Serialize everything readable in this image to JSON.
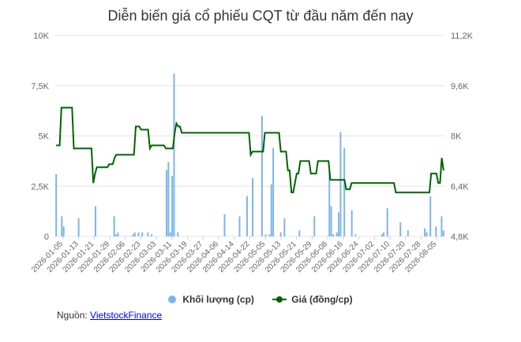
{
  "title": "Diễn biến giá cổ phiếu CQT từ đầu năm đến nay",
  "source": {
    "label": "Nguồn:",
    "link_text": "VietstockFinance"
  },
  "legend": {
    "volume": "Khối lượng (cp)",
    "price": "Giá (đồng/cp)"
  },
  "colors": {
    "volume": "#7cb5ec",
    "price": "#006400",
    "grid": "#e6e6e6"
  },
  "chart_data": {
    "type": "bar+line",
    "title": "Diễn biến giá cổ phiếu CQT từ đầu năm đến nay",
    "x_tick_labels": [
      "2026-01-05",
      "2026-01-13",
      "2026-01-21",
      "2026-01-29",
      "2026-02-06",
      "2026-02-23",
      "2026-03-03",
      "2026-03-11",
      "2026-03-19",
      "2026-03-27",
      "2026-04-06",
      "2026-04-14",
      "2026-04-22",
      "2026-05-05",
      "2026-05-13",
      "2026-05-21",
      "2026-05-29",
      "2026-06-08",
      "2026-06-16",
      "2026-06-24",
      "2026-07-02",
      "2026-07-10",
      "2026-07-20",
      "2026-07-28",
      "2026-08-05"
    ],
    "y_left": {
      "ticks": [
        "0",
        "2,5K",
        "5K",
        "7,5K",
        "10K"
      ],
      "range": [
        0,
        10000
      ]
    },
    "y_right": {
      "ticks": [
        "4,8K",
        "6,4K",
        "8K",
        "9,6K",
        "11,2K"
      ],
      "range": [
        4800,
        11200
      ]
    },
    "legend_position": "bottom",
    "series": [
      {
        "name": "Khối lượng (cp)",
        "type": "column",
        "axis": "left",
        "values": [
          3100,
          0,
          0,
          1000,
          500,
          0,
          0,
          0,
          0,
          0,
          0,
          0,
          900,
          0,
          0,
          0,
          0,
          0,
          0,
          0,
          0,
          1500,
          0,
          0,
          0,
          0,
          0,
          0,
          0,
          0,
          0,
          1000,
          100,
          200,
          0,
          0,
          0,
          0,
          0,
          0,
          0,
          100,
          200,
          0,
          200,
          0,
          200,
          0,
          0,
          200,
          0,
          100,
          0,
          0,
          0,
          0,
          0,
          0,
          0,
          3300,
          3700,
          200,
          3000,
          8100,
          0,
          200,
          0,
          0,
          0,
          0,
          0,
          0,
          0,
          0,
          0,
          0,
          0,
          0,
          0,
          0,
          0,
          0,
          0,
          0,
          0,
          0,
          0,
          0,
          0,
          0,
          1100,
          0,
          0,
          0,
          0,
          0,
          0,
          0,
          1000,
          0,
          0,
          0,
          2000,
          0,
          0,
          2900,
          0,
          0,
          0,
          0,
          6000,
          0,
          100,
          0,
          100,
          2600,
          4400,
          0,
          0,
          0,
          200,
          0,
          900,
          0,
          0,
          0,
          0,
          0,
          0,
          0,
          300,
          0,
          0,
          0,
          0,
          0,
          0,
          0,
          1000,
          0,
          0,
          0,
          0,
          0,
          0,
          0,
          3200,
          1500,
          100,
          0,
          200,
          1200,
          5200,
          0,
          4400,
          0,
          0,
          0,
          1300,
          0,
          100,
          0,
          0,
          0,
          0,
          0,
          0,
          0,
          0,
          0,
          0,
          0,
          0,
          0,
          100,
          200,
          0,
          1400,
          0,
          0,
          0,
          0,
          0,
          0,
          700,
          0,
          0,
          0,
          300,
          0,
          0,
          0,
          0,
          0,
          0,
          0,
          0,
          400,
          200,
          0,
          2000,
          0,
          0,
          500,
          0,
          0,
          1000,
          300
        ],
        "note": "daily volumes for trading sessions; bar index i spaced evenly"
      },
      {
        "name": "Giá (đồng/cp)",
        "type": "line",
        "axis": "right",
        "values": [
          7700,
          7700,
          7700,
          8900,
          8900,
          8900,
          8900,
          8900,
          8900,
          8900,
          7600,
          7600,
          7600,
          7600,
          7600,
          7600,
          7600,
          7600,
          7600,
          7600,
          7600,
          6500,
          6800,
          7000,
          7000,
          7000,
          7000,
          7000,
          7000,
          7000,
          7100,
          7100,
          7100,
          7300,
          7400,
          7400,
          7400,
          7400,
          7400,
          7400,
          7400,
          7400,
          7400,
          7400,
          7400,
          8300,
          8300,
          8300,
          8200,
          8200,
          8200,
          8200,
          8200,
          7600,
          7700,
          7700,
          7700,
          7700,
          7700,
          7700,
          7700,
          7700,
          7600,
          7600,
          7600,
          7600,
          7600,
          8100,
          8400,
          8300,
          8300,
          8100,
          8100,
          8100,
          8100,
          8100,
          8100,
          8100,
          8100,
          8100,
          8100,
          8100,
          8100,
          8100,
          8100,
          8100,
          8100,
          8100,
          8100,
          8100,
          8100,
          8100,
          8100,
          8100,
          8100,
          8100,
          8100,
          8100,
          8100,
          8100,
          8100,
          8100,
          8100,
          8100,
          8100,
          8100,
          8100,
          8100,
          8100,
          8100,
          7400,
          7500,
          7500,
          7500,
          7500,
          7500,
          7500,
          7500,
          8100,
          8100,
          8100,
          8100,
          8100,
          8100,
          8100,
          8100,
          8100,
          7500,
          7500,
          7500,
          7500,
          6900,
          6900,
          6200,
          6200,
          6500,
          6800,
          6800,
          7200,
          7200,
          7200,
          7200,
          7200,
          7200,
          6800,
          6800,
          6800,
          6800,
          7200,
          7200,
          7200,
          7200,
          7200,
          7200,
          7200,
          6600,
          6600,
          6600,
          6600,
          6600,
          6600,
          6600,
          6600,
          6600,
          6300,
          6300,
          6300,
          6500,
          6500,
          6500,
          6500,
          6500,
          6500,
          6500,
          6500,
          6500,
          6500,
          6500,
          6500,
          6500,
          6500,
          6500,
          6500,
          6500,
          6500,
          6500,
          6500,
          6500,
          6500,
          6500,
          6500,
          6500,
          6200,
          6200,
          6200,
          6200,
          6200,
          6200,
          6200,
          6200,
          6200,
          6200,
          6200,
          6200,
          6200,
          6200,
          6200,
          6200,
          6200,
          6200,
          6200,
          6200,
          6800,
          6800,
          6800,
          6800,
          6500,
          6500,
          7300,
          6900
        ]
      }
    ]
  }
}
